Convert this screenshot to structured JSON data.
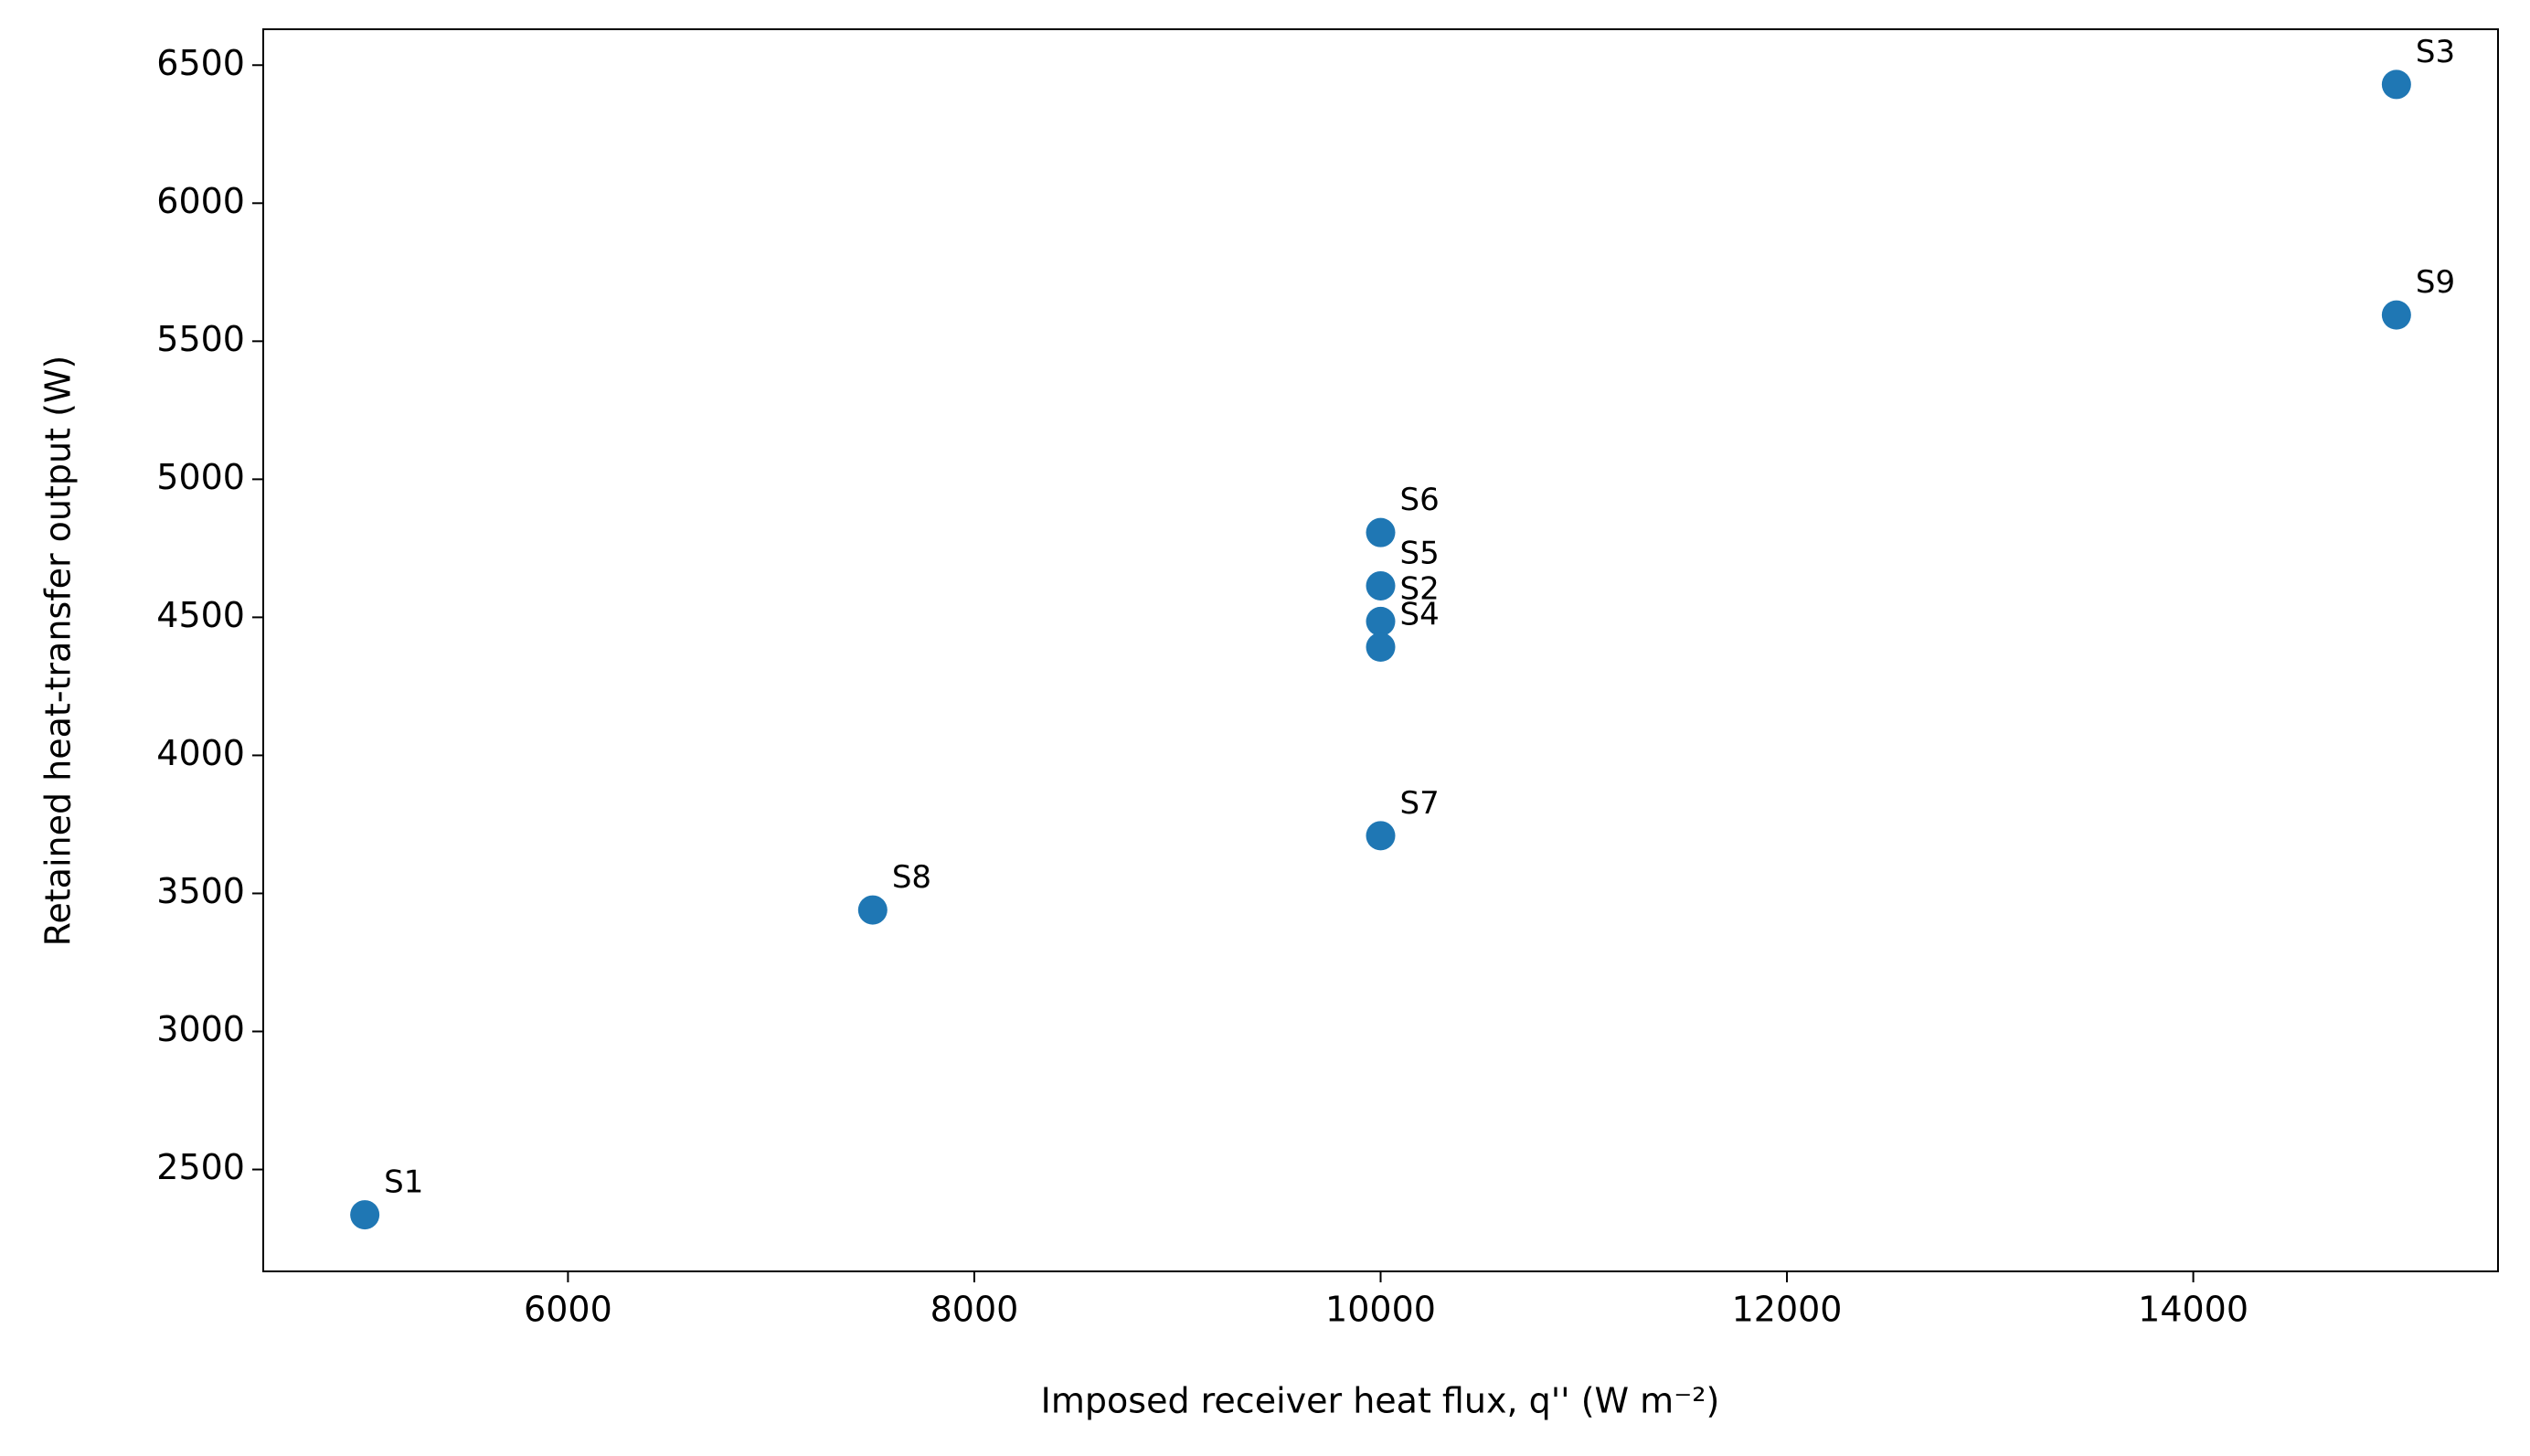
{
  "chart_data": {
    "type": "scatter",
    "xlabel": "Imposed receiver heat flux, q'' (W m⁻²)",
    "ylabel": "Retained heat-transfer output (W)",
    "labels": [
      "S1",
      "S2",
      "S3",
      "S4",
      "S5",
      "S6",
      "S7",
      "S8",
      "S9"
    ],
    "x": [
      5000,
      10000,
      15000,
      10000,
      10000,
      10000,
      10000,
      7500,
      15000
    ],
    "y": [
      2336,
      4485,
      6430,
      4392,
      4614,
      4807,
      3709,
      3440,
      5595
    ],
    "color": "#1f77b4",
    "xlim": [
      4500,
      15500
    ],
    "ylim": [
      2131,
      6630
    ],
    "xticks": [
      6000,
      8000,
      10000,
      12000,
      14000
    ],
    "yticks": [
      2500,
      3000,
      3500,
      4000,
      4500,
      5000,
      5500,
      6000,
      6500
    ],
    "grid": false
  }
}
